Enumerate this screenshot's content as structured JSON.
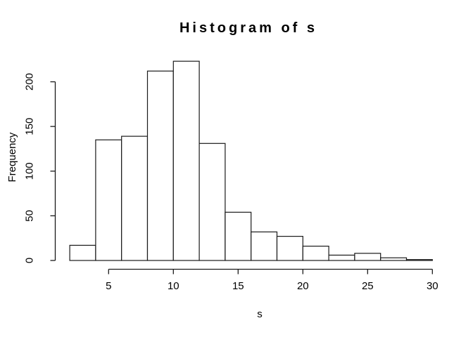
{
  "chart_data": {
    "type": "bar",
    "subtype": "histogram",
    "title": "Histogram of s",
    "xlabel": "s",
    "ylabel": "Frequency",
    "bin_edges": [
      2,
      4,
      6,
      8,
      10,
      12,
      14,
      16,
      18,
      20,
      22,
      24,
      26,
      28,
      30
    ],
    "categories": [
      "2-4",
      "4-6",
      "6-8",
      "8-10",
      "10-12",
      "12-14",
      "14-16",
      "16-18",
      "18-20",
      "20-22",
      "22-24",
      "24-26",
      "26-28",
      "28-30"
    ],
    "values": [
      17,
      135,
      139,
      212,
      223,
      131,
      54,
      32,
      27,
      16,
      6,
      8,
      3,
      1
    ],
    "x_ticks": [
      5,
      10,
      15,
      20,
      25,
      30
    ],
    "y_ticks": [
      0,
      50,
      100,
      150,
      200
    ],
    "xlim": [
      2,
      30
    ],
    "ylim": [
      0,
      230
    ],
    "grid": false,
    "legend": "none",
    "colors": {
      "bar_fill": "#ffffff",
      "bar_border": "#1a1a1a",
      "axis": "#1a1a1a",
      "text": "#000000",
      "background": "#ffffff"
    }
  }
}
